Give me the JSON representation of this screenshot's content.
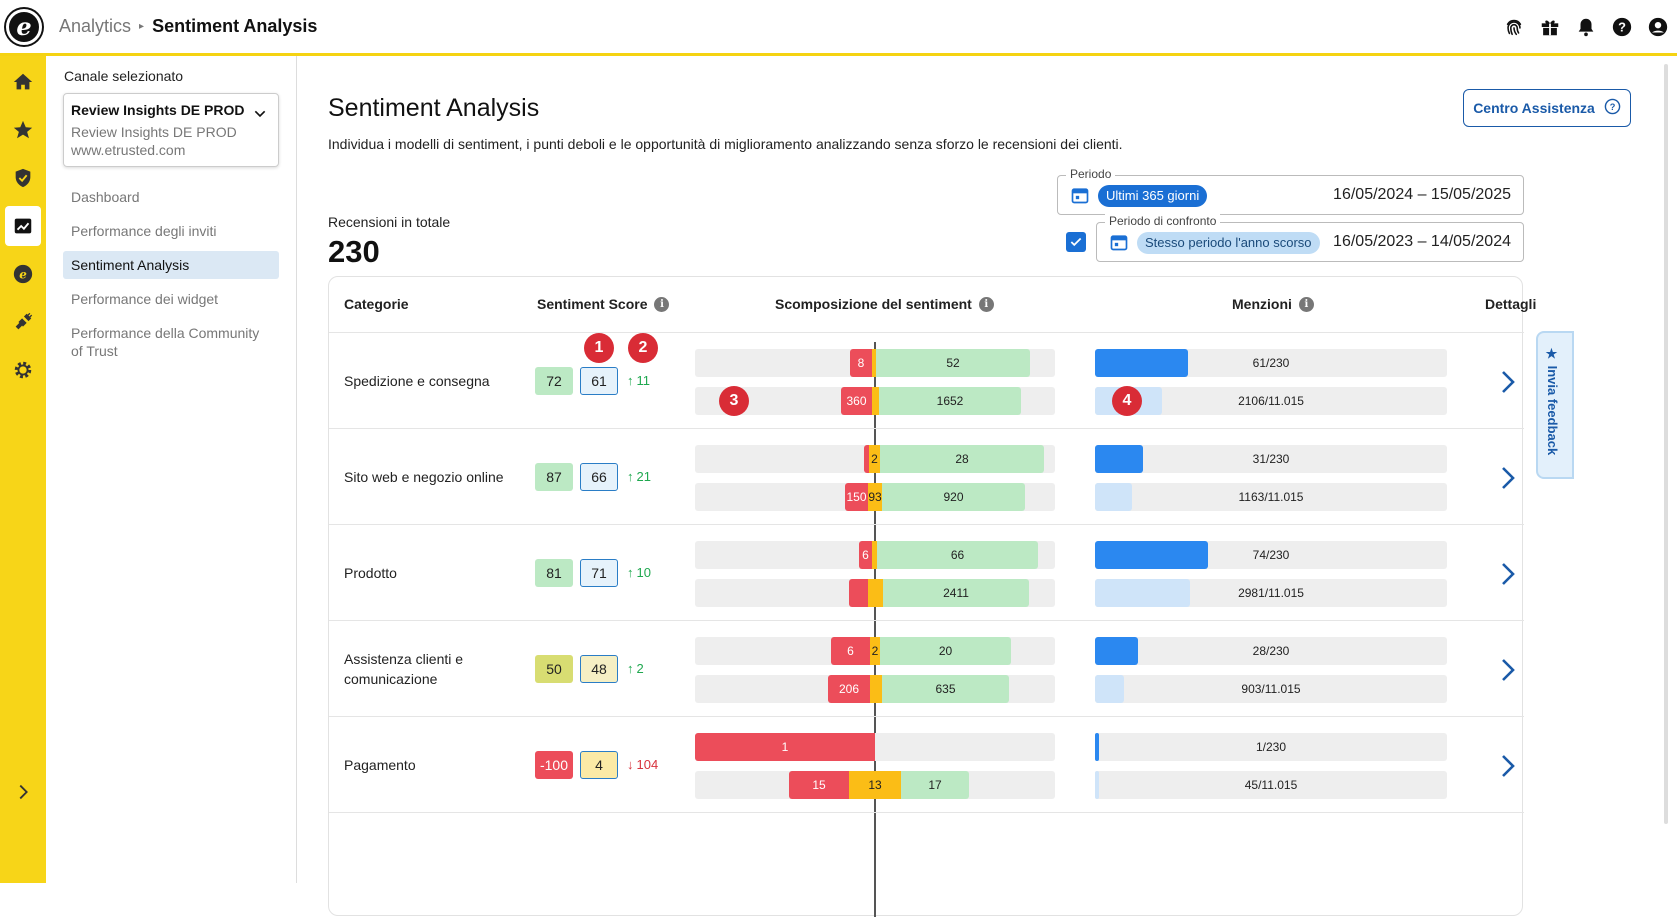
{
  "topbar": {
    "breadcrumb_parent": "Analytics",
    "breadcrumb_current": "Sentiment Analysis",
    "icons": [
      "fingerprint-icon",
      "gift-icon",
      "bell-icon",
      "help-icon",
      "account-icon"
    ]
  },
  "rail": {
    "items": [
      "home-icon",
      "star-icon",
      "shield-check-icon",
      "analytics-icon",
      "etrusted-coin-icon",
      "plug-icon",
      "settings-icon"
    ],
    "active": "analytics-icon",
    "expand": "chevron-right-icon"
  },
  "sidebar": {
    "channel_label": "Canale selezionato",
    "channel_title": "Review Insights DE PROD",
    "channel_sub1": "Review Insights DE PROD",
    "channel_sub2": "www.etrusted.com",
    "nav": [
      {
        "label": "Dashboard"
      },
      {
        "label": "Performance degli inviti"
      },
      {
        "label": "Sentiment Analysis",
        "active": true
      },
      {
        "label": "Performance dei widget"
      },
      {
        "label": "Performance della Community of Trust"
      }
    ]
  },
  "main": {
    "title": "Sentiment Analysis",
    "description": "Individua i modelli di sentiment, i punti deboli e le opportunità di miglioramento analizzando senza sforzo le recensioni dei clienti.",
    "help_button": "Centro Assistenza",
    "total_label": "Recensioni in totale",
    "total_value": "230"
  },
  "period": {
    "legend": "Periodo",
    "chip": "Ultimi 365 giorni",
    "range": "16/05/2024 – 15/05/2025"
  },
  "compare": {
    "legend": "Periodo di confronto",
    "chip": "Stesso periodo l'anno scorso",
    "range": "16/05/2023 – 14/05/2024",
    "checked": true
  },
  "table": {
    "headers": {
      "categories": "Categorie",
      "score": "Sentiment Score",
      "breakdown": "Scomposizione del sentiment",
      "mentions": "Menzioni",
      "details": "Dettagli"
    },
    "rows": [
      {
        "category": "Spedizione e consegna",
        "score": "72",
        "score_cmp": "61",
        "trend": "11",
        "trend_dir": "up",
        "cur": {
          "neg": "8",
          "neu": "",
          "pos": "52"
        },
        "cmp": {
          "neg": "360",
          "neu": "",
          "pos": "1652"
        },
        "mentions_cur": "61/230",
        "mentions_cmp": "2106/11.015",
        "mentions_cur_pct": 26.5,
        "mentions_cmp_pct": 19.1
      },
      {
        "category": "Sito web e negozio online",
        "score": "87",
        "score_cmp": "66",
        "trend": "21",
        "trend_dir": "up",
        "cur": {
          "neg": "",
          "neu": "2",
          "pos": "28"
        },
        "cmp": {
          "neg": "150",
          "neu": "93",
          "pos": "920"
        },
        "mentions_cur": "31/230",
        "mentions_cmp": "1163/11.015",
        "mentions_cur_pct": 13.5,
        "mentions_cmp_pct": 10.6
      },
      {
        "category": "Prodotto",
        "score": "81",
        "score_cmp": "71",
        "trend": "10",
        "trend_dir": "up",
        "cur": {
          "neg": "6",
          "neu": "",
          "pos": "66"
        },
        "cmp": {
          "neg": "",
          "neu": "",
          "pos": "2411"
        },
        "mentions_cur": "74/230",
        "mentions_cmp": "2981/11.015",
        "mentions_cur_pct": 32.2,
        "mentions_cmp_pct": 27.1
      },
      {
        "category": "Assistenza clienti e comunicazione",
        "score": "50",
        "score_cmp": "48",
        "trend": "2",
        "trend_dir": "up",
        "cur": {
          "neg": "6",
          "neu": "2",
          "pos": "20"
        },
        "cmp": {
          "neg": "206",
          "neu": "",
          "pos": "635"
        },
        "mentions_cur": "28/230",
        "mentions_cmp": "903/11.015",
        "mentions_cur_pct": 12.2,
        "mentions_cmp_pct": 8.2
      },
      {
        "category": "Pagamento",
        "score": "-100",
        "score_cmp": "4",
        "trend": "104",
        "trend_dir": "down",
        "cur": {
          "neg": "1",
          "neu": "",
          "pos": ""
        },
        "cmp": {
          "neg": "15",
          "neu": "13",
          "pos": "17"
        },
        "mentions_cur": "1/230",
        "mentions_cmp": "45/11.015",
        "mentions_cur_pct": 0.4,
        "mentions_cmp_pct": 0.4
      }
    ]
  },
  "annotations": [
    "1",
    "2",
    "3",
    "4"
  ],
  "feedback": {
    "label": "★ Invia feedback"
  },
  "colors": {
    "accent_yellow": "#f7d518",
    "primary_blue": "#1a5aa8",
    "negative": "#ec4d5a",
    "neutral": "#fbbd16",
    "positive": "#bce9c4"
  }
}
